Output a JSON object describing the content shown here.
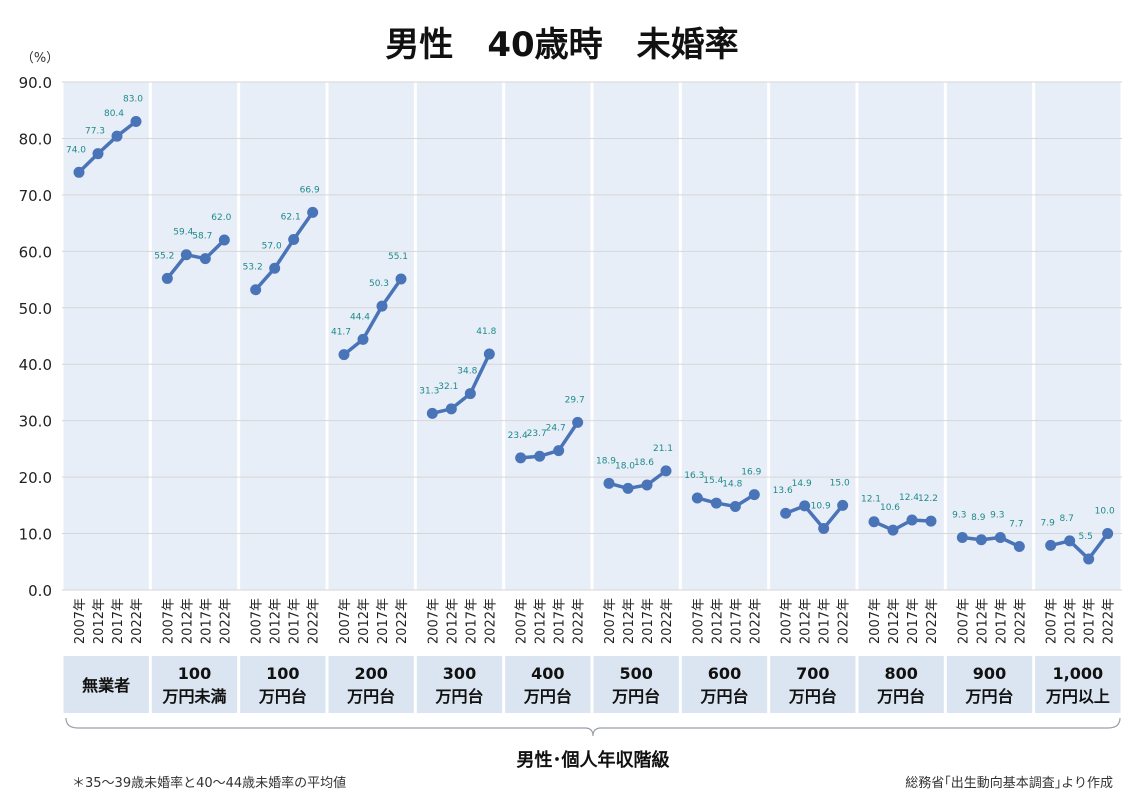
{
  "chart_data": {
    "type": "line",
    "title": "男性　40歳時　未婚率",
    "ylabel": "（%）",
    "ylim": [
      0,
      90
    ],
    "yticks": [
      "0.0",
      "10.0",
      "20.0",
      "30.0",
      "40.0",
      "50.0",
      "60.0",
      "70.0",
      "80.0",
      "90.0"
    ],
    "xlabel": "男性･個人年収階級",
    "years": [
      "2007年",
      "2012年",
      "2017年",
      "2022年"
    ],
    "groups": [
      {
        "label_lines": [
          "無業者"
        ],
        "values": [
          74.0,
          77.3,
          80.4,
          83.0
        ]
      },
      {
        "label_lines": [
          "100",
          "万円未満"
        ],
        "values": [
          55.2,
          59.4,
          58.7,
          62.0
        ]
      },
      {
        "label_lines": [
          "100",
          "万円台"
        ],
        "values": [
          53.2,
          57.0,
          62.1,
          66.9
        ]
      },
      {
        "label_lines": [
          "200",
          "万円台"
        ],
        "values": [
          41.7,
          44.4,
          50.3,
          55.1
        ]
      },
      {
        "label_lines": [
          "300",
          "万円台"
        ],
        "values": [
          31.3,
          32.1,
          34.8,
          41.8
        ]
      },
      {
        "label_lines": [
          "400",
          "万円台"
        ],
        "values": [
          23.4,
          23.7,
          24.7,
          29.7
        ]
      },
      {
        "label_lines": [
          "500",
          "万円台"
        ],
        "values": [
          18.9,
          18.0,
          18.6,
          21.1
        ]
      },
      {
        "label_lines": [
          "600",
          "万円台"
        ],
        "values": [
          16.3,
          15.4,
          14.8,
          16.9
        ]
      },
      {
        "label_lines": [
          "700",
          "万円台"
        ],
        "values": [
          13.6,
          14.9,
          10.9,
          15.0
        ]
      },
      {
        "label_lines": [
          "800",
          "万円台"
        ],
        "values": [
          12.1,
          10.6,
          12.4,
          12.2
        ]
      },
      {
        "label_lines": [
          "900",
          "万円台"
        ],
        "values": [
          9.3,
          8.9,
          9.3,
          7.7
        ]
      },
      {
        "label_lines": [
          "1,000",
          "万円以上"
        ],
        "values": [
          7.9,
          8.7,
          5.5,
          10.0
        ]
      }
    ],
    "grid": true,
    "colors": {
      "line": "#4a74b8",
      "label": "#1f8a8a",
      "band": "#e8eef8",
      "category_box": "#dbe4f1",
      "grid": "#d6d6d6"
    }
  },
  "footnotes": {
    "left": "＊35〜39歳未婚率と40〜44歳未婚率の平均値",
    "right": "総務省｢出生動向基本調査｣より作成"
  }
}
